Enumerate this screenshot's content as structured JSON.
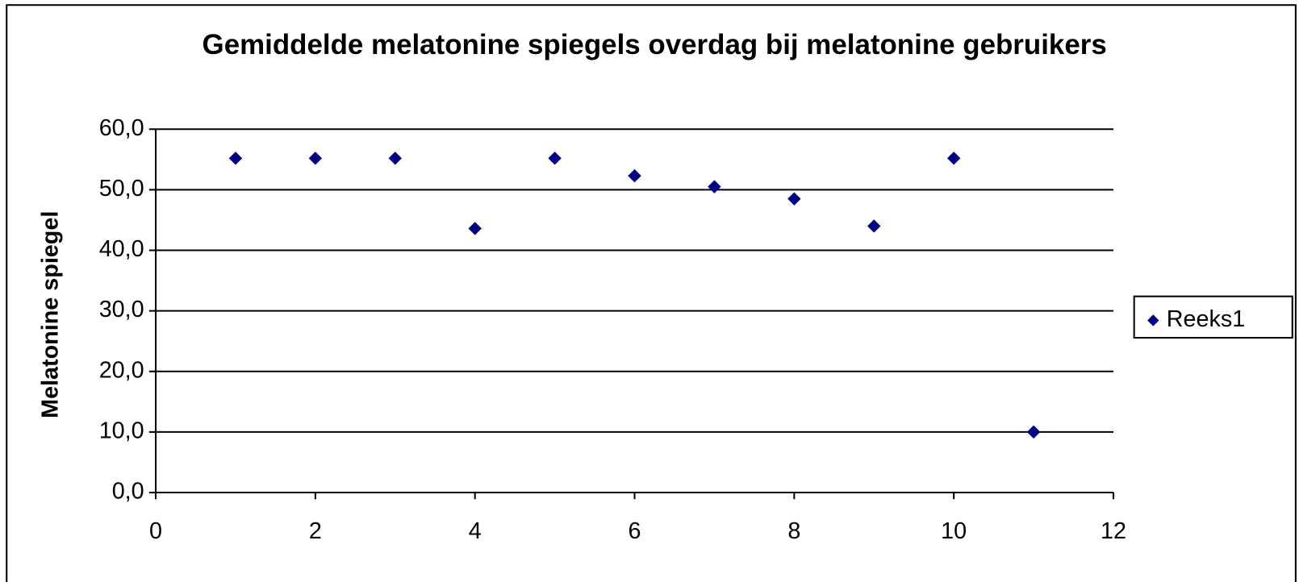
{
  "chart_data": {
    "type": "scatter",
    "title": "Gemiddelde melatonine spiegels overdag bij melatonine gebruikers",
    "y_label": "Melatonine spiegel",
    "series": [
      {
        "name": "Reeks1",
        "color": "#000080",
        "x": [
          1,
          2,
          3,
          4,
          5,
          6,
          7,
          8,
          9,
          10,
          11
        ],
        "values": [
          55.2,
          55.2,
          55.2,
          43.6,
          55.2,
          52.3,
          50.5,
          48.5,
          44.0,
          55.2,
          10.0
        ]
      }
    ],
    "xlim": [
      0,
      12
    ],
    "xticks": [
      0,
      2,
      4,
      6,
      8,
      10,
      12
    ],
    "ylim": [
      0,
      60
    ],
    "yticks": [
      {
        "value": 0,
        "label": "0,0"
      },
      {
        "value": 10,
        "label": "10,0"
      },
      {
        "value": 20,
        "label": "20,0"
      },
      {
        "value": 30,
        "label": "30,0"
      },
      {
        "value": 40,
        "label": "40,0"
      },
      {
        "value": 50,
        "label": "50,0"
      },
      {
        "value": 60,
        "label": "60,0"
      }
    ],
    "grid": true,
    "legend": "right"
  }
}
